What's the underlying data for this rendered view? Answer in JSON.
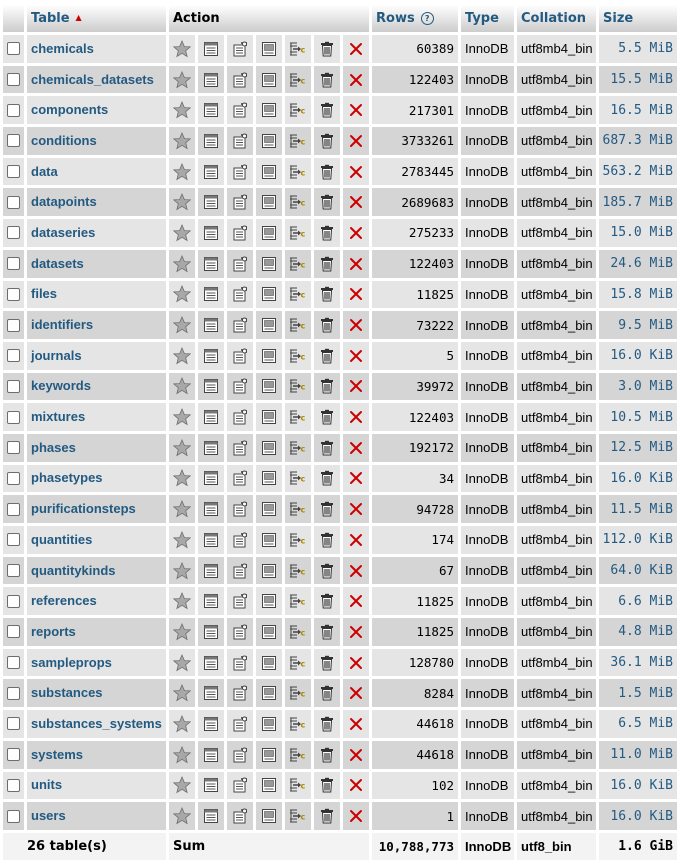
{
  "header": {
    "table": "Table",
    "action": "Action",
    "rows": "Rows",
    "type": "Type",
    "collation": "Collation",
    "size": "Size"
  },
  "icons": [
    "star-icon",
    "browse-icon",
    "structure-icon",
    "search-icon",
    "insert-icon",
    "empty-icon",
    "drop-icon"
  ],
  "tables": [
    {
      "name": "chemicals",
      "rows": "60389",
      "type": "InnoDB",
      "collation": "utf8mb4_bin",
      "size": "5.5 MiB"
    },
    {
      "name": "chemicals_datasets",
      "rows": "122403",
      "type": "InnoDB",
      "collation": "utf8mb4_bin",
      "size": "15.5 MiB"
    },
    {
      "name": "components",
      "rows": "217301",
      "type": "InnoDB",
      "collation": "utf8mb4_bin",
      "size": "16.5 MiB"
    },
    {
      "name": "conditions",
      "rows": "3733261",
      "type": "InnoDB",
      "collation": "utf8mb4_bin",
      "size": "687.3 MiB"
    },
    {
      "name": "data",
      "rows": "2783445",
      "type": "InnoDB",
      "collation": "utf8mb4_bin",
      "size": "563.2 MiB"
    },
    {
      "name": "datapoints",
      "rows": "2689683",
      "type": "InnoDB",
      "collation": "utf8mb4_bin",
      "size": "185.7 MiB"
    },
    {
      "name": "dataseries",
      "rows": "275233",
      "type": "InnoDB",
      "collation": "utf8mb4_bin",
      "size": "15.0 MiB"
    },
    {
      "name": "datasets",
      "rows": "122403",
      "type": "InnoDB",
      "collation": "utf8mb4_bin",
      "size": "24.6 MiB"
    },
    {
      "name": "files",
      "rows": "11825",
      "type": "InnoDB",
      "collation": "utf8mb4_bin",
      "size": "15.8 MiB"
    },
    {
      "name": "identifiers",
      "rows": "73222",
      "type": "InnoDB",
      "collation": "utf8mb4_bin",
      "size": "9.5 MiB"
    },
    {
      "name": "journals",
      "rows": "5",
      "type": "InnoDB",
      "collation": "utf8mb4_bin",
      "size": "16.0 KiB"
    },
    {
      "name": "keywords",
      "rows": "39972",
      "type": "InnoDB",
      "collation": "utf8mb4_bin",
      "size": "3.0 MiB"
    },
    {
      "name": "mixtures",
      "rows": "122403",
      "type": "InnoDB",
      "collation": "utf8mb4_bin",
      "size": "10.5 MiB"
    },
    {
      "name": "phases",
      "rows": "192172",
      "type": "InnoDB",
      "collation": "utf8mb4_bin",
      "size": "12.5 MiB"
    },
    {
      "name": "phasetypes",
      "rows": "34",
      "type": "InnoDB",
      "collation": "utf8mb4_bin",
      "size": "16.0 KiB"
    },
    {
      "name": "purificationsteps",
      "rows": "94728",
      "type": "InnoDB",
      "collation": "utf8mb4_bin",
      "size": "11.5 MiB"
    },
    {
      "name": "quantities",
      "rows": "174",
      "type": "InnoDB",
      "collation": "utf8mb4_bin",
      "size": "112.0 KiB"
    },
    {
      "name": "quantitykinds",
      "rows": "67",
      "type": "InnoDB",
      "collation": "utf8mb4_bin",
      "size": "64.0 KiB"
    },
    {
      "name": "references",
      "rows": "11825",
      "type": "InnoDB",
      "collation": "utf8mb4_bin",
      "size": "6.6 MiB"
    },
    {
      "name": "reports",
      "rows": "11825",
      "type": "InnoDB",
      "collation": "utf8mb4_bin",
      "size": "4.8 MiB"
    },
    {
      "name": "sampleprops",
      "rows": "128780",
      "type": "InnoDB",
      "collation": "utf8mb4_bin",
      "size": "36.1 MiB"
    },
    {
      "name": "substances",
      "rows": "8284",
      "type": "InnoDB",
      "collation": "utf8mb4_bin",
      "size": "1.5 MiB"
    },
    {
      "name": "substances_systems",
      "rows": "44618",
      "type": "InnoDB",
      "collation": "utf8mb4_bin",
      "size": "6.5 MiB"
    },
    {
      "name": "systems",
      "rows": "44618",
      "type": "InnoDB",
      "collation": "utf8mb4_bin",
      "size": "11.0 MiB"
    },
    {
      "name": "units",
      "rows": "102",
      "type": "InnoDB",
      "collation": "utf8mb4_bin",
      "size": "16.0 KiB"
    },
    {
      "name": "users",
      "rows": "1",
      "type": "InnoDB",
      "collation": "utf8mb4_bin",
      "size": "16.0 KiB"
    }
  ],
  "footer": {
    "count": "26 table(s)",
    "sum_label": "Sum",
    "rows": "10,788,773",
    "type": "InnoDB",
    "collation": "utf8_bin",
    "size": "1.6 GiB"
  },
  "colors": {
    "link": "#235a81",
    "row_odd": "#e5e5e5",
    "row_even": "#d5d5d5",
    "drop": "#cc0000"
  }
}
